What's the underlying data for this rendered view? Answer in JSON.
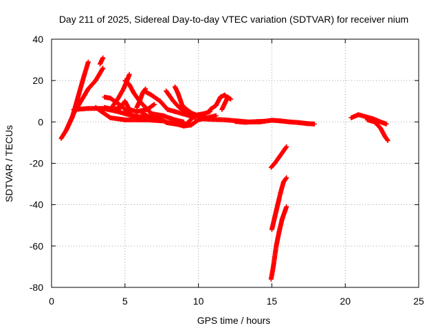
{
  "chart_data": {
    "type": "scatter",
    "title": "Day 211 of 2025, Sidereal Day-to-day VTEC variation (SDTVAR) for receiver nium",
    "xlabel": "GPS time / hours",
    "ylabel": "SDTVAR / TECUs",
    "xlim": [
      0,
      25
    ],
    "ylim": [
      -80,
      40
    ],
    "xticks": [
      0,
      5,
      10,
      15,
      20,
      25
    ],
    "yticks": [
      -80,
      -60,
      -40,
      -20,
      0,
      20,
      40
    ],
    "grid": true,
    "marker": "+",
    "color": "#ff0000",
    "tracks": [
      {
        "points": [
          [
            0.65,
            -8
          ],
          [
            1.0,
            -4
          ],
          [
            1.4,
            2
          ],
          [
            1.8,
            12
          ],
          [
            2.2,
            22
          ],
          [
            2.5,
            29
          ]
        ]
      },
      {
        "points": [
          [
            1.0,
            -4
          ],
          [
            1.5,
            4
          ],
          [
            2.0,
            10
          ],
          [
            2.5,
            16
          ],
          [
            3.0,
            20
          ],
          [
            3.5,
            26
          ]
        ]
      },
      {
        "points": [
          [
            3.3,
            28
          ],
          [
            3.5,
            31
          ]
        ]
      },
      {
        "points": [
          [
            1.5,
            6
          ],
          [
            2.5,
            6.5
          ],
          [
            3.5,
            6.5
          ],
          [
            4.5,
            5
          ],
          [
            5.5,
            3
          ],
          [
            6.5,
            2
          ],
          [
            7.5,
            1.5
          ]
        ]
      },
      {
        "points": [
          [
            3.0,
            7
          ],
          [
            4.0,
            2
          ],
          [
            5.0,
            1
          ],
          [
            6.0,
            1
          ],
          [
            7.0,
            1
          ]
        ]
      },
      {
        "points": [
          [
            3.6,
            7
          ],
          [
            4.2,
            6
          ],
          [
            4.7,
            7
          ],
          [
            5.0,
            10
          ],
          [
            5.3,
            6
          ],
          [
            5.8,
            5
          ],
          [
            6.5,
            6
          ],
          [
            7.0,
            8.5
          ]
        ]
      },
      {
        "points": [
          [
            4.0,
            6
          ],
          [
            4.5,
            11
          ],
          [
            4.9,
            16
          ],
          [
            5.2,
            21
          ],
          [
            5.3,
            23
          ]
        ]
      },
      {
        "points": [
          [
            3.6,
            12
          ],
          [
            4.0,
            11.5
          ],
          [
            4.3,
            10
          ],
          [
            4.7,
            8
          ],
          [
            5.5,
            3
          ],
          [
            6.5,
            1
          ],
          [
            7.5,
            0.5
          ]
        ]
      },
      {
        "points": [
          [
            5.0,
            20
          ],
          [
            5.3,
            18
          ],
          [
            5.6,
            14
          ],
          [
            6.0,
            10
          ],
          [
            6.8,
            4
          ],
          [
            7.6,
            3
          ],
          [
            8.4,
            1
          ],
          [
            9.0,
            0
          ]
        ]
      },
      {
        "points": [
          [
            5.8,
            7
          ],
          [
            6.0,
            10
          ],
          [
            6.2,
            14
          ],
          [
            6.4,
            16
          ]
        ]
      },
      {
        "points": [
          [
            6.3,
            15
          ],
          [
            6.8,
            13
          ],
          [
            7.4,
            10
          ],
          [
            7.9,
            6
          ],
          [
            8.4,
            5
          ],
          [
            8.9,
            4
          ],
          [
            9.4,
            3
          ],
          [
            9.8,
            2
          ]
        ]
      },
      {
        "points": [
          [
            6.2,
            4
          ],
          [
            6.8,
            2
          ],
          [
            7.4,
            1
          ],
          [
            8.0,
            -0.5
          ],
          [
            8.6,
            -1.2
          ],
          [
            9.2,
            -1
          ],
          [
            9.6,
            2
          ],
          [
            10.0,
            3.5
          ],
          [
            10.4,
            4
          ],
          [
            10.8,
            5
          ]
        ]
      },
      {
        "points": [
          [
            8.4,
            17
          ],
          [
            8.6,
            14
          ],
          [
            8.9,
            8
          ],
          [
            9.2,
            6
          ],
          [
            9.6,
            4
          ],
          [
            10.0,
            3
          ],
          [
            10.5,
            2
          ]
        ]
      },
      {
        "points": [
          [
            7.8,
            15
          ],
          [
            8.0,
            13
          ],
          [
            8.3,
            10
          ],
          [
            8.7,
            7
          ],
          [
            9.1,
            5
          ],
          [
            9.6,
            4
          ],
          [
            10.2,
            2
          ]
        ]
      },
      {
        "points": [
          [
            7.8,
            -0.3
          ],
          [
            8.5,
            -1
          ],
          [
            9.0,
            -2
          ],
          [
            9.5,
            -1.5
          ],
          [
            10.0,
            1
          ],
          [
            10.6,
            2
          ],
          [
            11.2,
            3
          ]
        ]
      },
      {
        "points": [
          [
            10.8,
            6
          ],
          [
            11.2,
            8
          ],
          [
            11.5,
            12
          ],
          [
            11.8,
            13
          ],
          [
            12.0,
            11
          ]
        ]
      },
      {
        "points": [
          [
            11.6,
            6
          ],
          [
            11.8,
            9
          ],
          [
            12.0,
            12
          ],
          [
            12.2,
            11
          ]
        ]
      },
      {
        "points": [
          [
            10.2,
            1.5
          ],
          [
            11.0,
            1.2
          ],
          [
            11.8,
            1
          ],
          [
            12.6,
            0.5
          ],
          [
            13.4,
            0
          ],
          [
            14.2,
            0
          ],
          [
            15.0,
            0.8
          ],
          [
            15.6,
            0.5
          ],
          [
            16.2,
            0
          ],
          [
            16.8,
            -0.3
          ],
          [
            17.4,
            -0.8
          ],
          [
            17.9,
            -1
          ]
        ]
      },
      {
        "points": [
          [
            12.5,
            0.2
          ],
          [
            13.2,
            -0.2
          ],
          [
            14.0,
            0.2
          ],
          [
            14.5,
            0.3
          ]
        ]
      },
      {
        "points": [
          [
            14.95,
            -22
          ],
          [
            15.2,
            -20
          ],
          [
            15.5,
            -17
          ],
          [
            15.8,
            -14
          ],
          [
            16.0,
            -12
          ]
        ]
      },
      {
        "points": [
          [
            15.0,
            -52
          ],
          [
            15.2,
            -46
          ],
          [
            15.4,
            -40
          ],
          [
            15.6,
            -34
          ],
          [
            15.8,
            -29
          ],
          [
            16.0,
            -27
          ]
        ]
      },
      {
        "points": [
          [
            14.95,
            -76
          ],
          [
            15.1,
            -70
          ],
          [
            15.3,
            -60
          ],
          [
            15.5,
            -53
          ],
          [
            15.7,
            -47
          ],
          [
            15.9,
            -43
          ],
          [
            16.0,
            -41
          ]
        ]
      },
      {
        "points": [
          [
            20.4,
            2
          ],
          [
            20.9,
            3.5
          ],
          [
            21.4,
            2.5
          ],
          [
            21.9,
            1.5
          ],
          [
            22.4,
            0
          ],
          [
            22.8,
            -1
          ]
        ]
      },
      {
        "points": [
          [
            21.5,
            1
          ],
          [
            22.0,
            0
          ],
          [
            22.4,
            -3
          ],
          [
            22.7,
            -7
          ],
          [
            22.9,
            -9
          ]
        ]
      }
    ]
  }
}
